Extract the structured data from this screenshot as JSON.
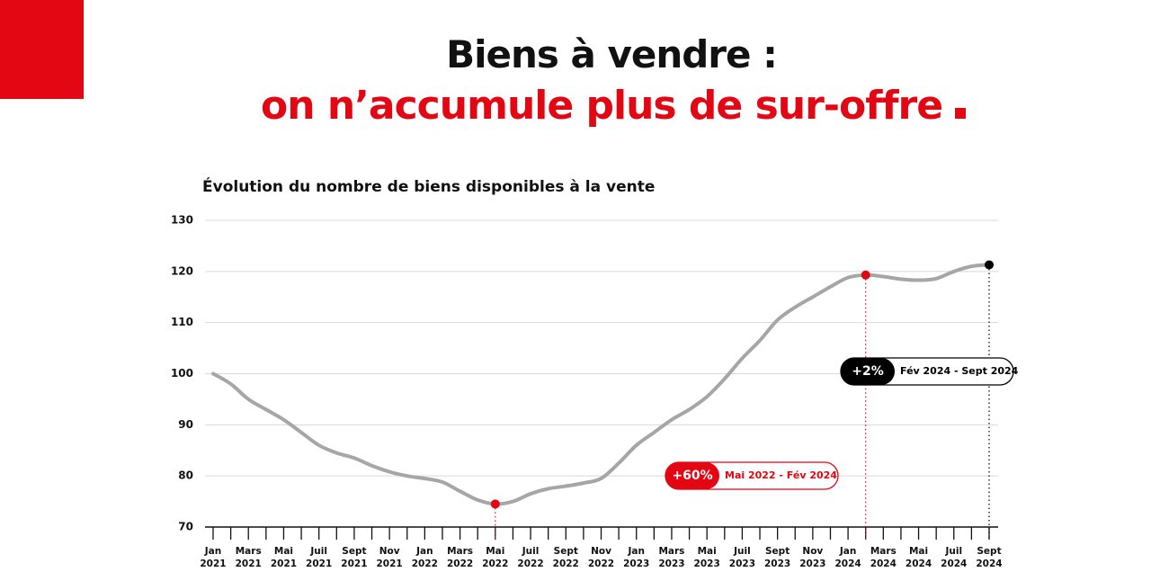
{
  "header": {
    "title_line1": "Biens à vendre :",
    "title_line2": "on n’accumule plus de sur-offre"
  },
  "chart_data": {
    "type": "line",
    "title": "Évolution du nombre de biens disponibles à la vente",
    "categories": [
      "Jan 2021",
      null,
      "Mars 2021",
      null,
      "Mai 2021",
      null,
      "Juil 2021",
      null,
      "Sept 2021",
      null,
      "Nov 2021",
      null,
      "Jan 2022",
      null,
      "Mars 2022",
      null,
      "Mai 2022",
      null,
      "Juil 2022",
      null,
      "Sept 2022",
      null,
      "Nov 2022",
      null,
      "Jan 2023",
      null,
      "Mars 2023",
      null,
      "Mai 2023",
      null,
      "Juil 2023",
      null,
      "Sept 2023",
      null,
      "Nov 2023",
      null,
      "Jan 2024",
      null,
      "Mars 2024",
      null,
      "Mai 2024",
      null,
      "Juil 2024",
      null,
      "Sept 2024"
    ],
    "values": [
      100,
      98,
      95,
      93,
      91,
      88.5,
      86,
      84.5,
      83.5,
      82,
      80.8,
      80,
      79.5,
      78.8,
      77,
      75.3,
      74.5,
      75,
      76.5,
      77.5,
      78,
      78.6,
      79.5,
      82.5,
      86,
      88.5,
      91,
      93,
      95.5,
      99,
      103,
      106.5,
      110.5,
      113,
      115,
      117,
      118.8,
      119.3,
      119,
      118.5,
      118.3,
      118.6,
      120,
      121,
      121.3
    ],
    "color": "#a6a6a6",
    "ylim": [
      70,
      130
    ],
    "yticks": [
      70,
      80,
      90,
      100,
      110,
      120,
      130
    ],
    "grid": true,
    "annotations": [
      {
        "badge": "+60%",
        "text": "Mai 2022 - Fév 2024",
        "color": "#e30613"
      },
      {
        "badge": "+2%",
        "text": "Fév 2024 - Sept 2024",
        "color": "#000000"
      }
    ]
  }
}
